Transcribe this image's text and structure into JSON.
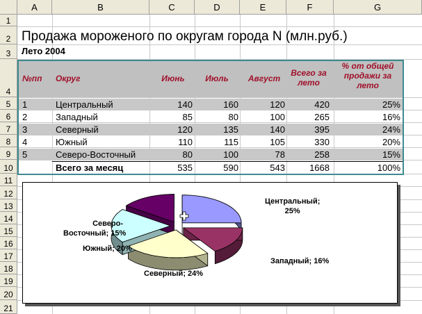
{
  "columns": [
    "A",
    "B",
    "C",
    "D",
    "E",
    "F",
    "G"
  ],
  "rows": [
    "1",
    "2",
    "3",
    "4",
    "5",
    "6",
    "7",
    "8",
    "9",
    "10",
    "11",
    "12",
    "13",
    "14",
    "15",
    "16",
    "17",
    "18",
    "19",
    "20",
    "21"
  ],
  "sheet": {
    "title": "Продажа мороженого по округам города N (млн.руб.)",
    "subtitle": "Лето 2004",
    "headers": {
      "num": "№пп",
      "district": "Округ",
      "june": "Июнь",
      "july": "Июль",
      "august": "Август",
      "total": [
        "Всего за",
        "лето"
      ],
      "percent": [
        "% от общей",
        "продажи за",
        "лето"
      ]
    },
    "data": [
      {
        "n": "1",
        "district": "Центральный",
        "june": "140",
        "july": "160",
        "august": "120",
        "total": "420",
        "pct": "25%"
      },
      {
        "n": "2",
        "district": "Западный",
        "june": "85",
        "july": "80",
        "august": "100",
        "total": "265",
        "pct": "16%"
      },
      {
        "n": "3",
        "district": "Северный",
        "june": "120",
        "july": "135",
        "august": "140",
        "total": "395",
        "pct": "24%"
      },
      {
        "n": "4",
        "district": "Южный",
        "june": "110",
        "july": "115",
        "august": "105",
        "total": "330",
        "pct": "20%"
      },
      {
        "n": "5",
        "district": "Северо-Восточный",
        "june": "80",
        "july": "100",
        "august": "78",
        "total": "258",
        "pct": "15%"
      }
    ],
    "totals": {
      "label": "Всего за месяц",
      "june": "535",
      "july": "590",
      "august": "543",
      "total": "1668",
      "pct": "100%"
    }
  },
  "chart_data": {
    "type": "pie",
    "categories": [
      "Центральный",
      "Западный",
      "Северный",
      "Южный",
      "Северо-Восточный"
    ],
    "values": [
      25,
      16,
      24,
      20,
      15
    ],
    "labels": [
      [
        "Центральный;",
        "25%"
      ],
      [
        "Западный; 16%"
      ],
      [
        "Северный; 24%"
      ],
      [
        "Южный; 20%"
      ],
      [
        "Северо-",
        "Восточный; 15%"
      ]
    ],
    "colors": [
      "#9999ff",
      "#993366",
      "#ffffcc",
      "#ccffff",
      "#660066"
    ],
    "exploded": true,
    "style": "3d"
  }
}
